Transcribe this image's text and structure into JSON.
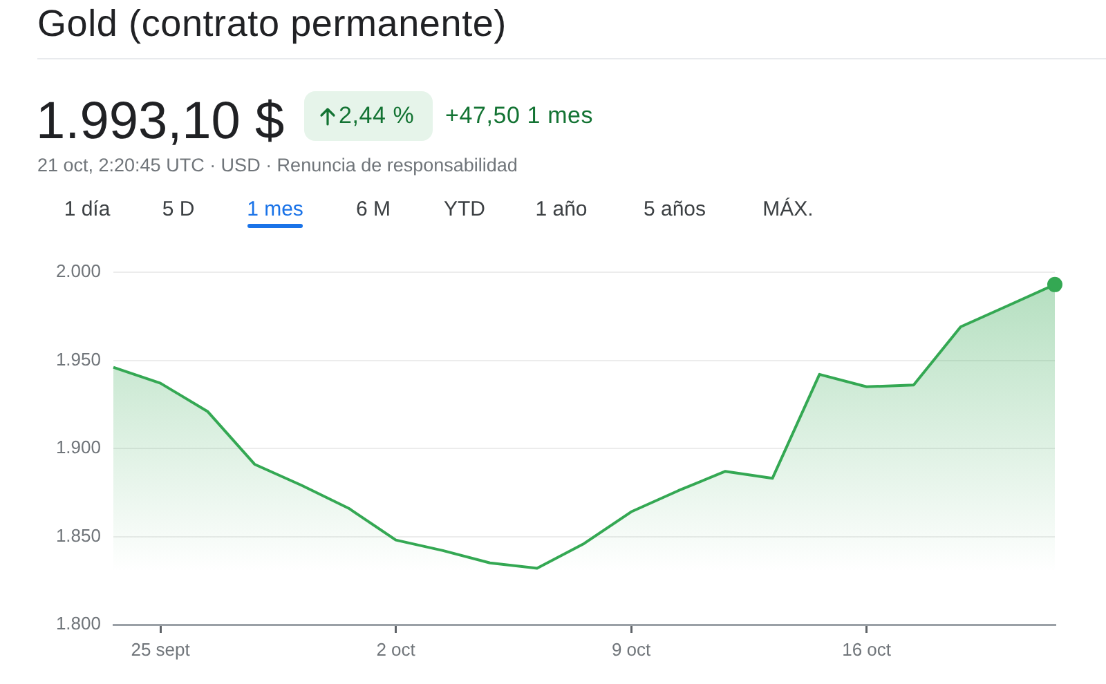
{
  "chart_data": {
    "type": "area",
    "title": "Gold (contrato permanente)",
    "subtitle": "21 oct, 2:20:45 UTC · USD · Renuncia de responsabilidad",
    "annotations": [
      "1.993,10 $",
      "2,44 %",
      "+47,50 1 mes",
      "1 día",
      "5 D",
      "1 mes",
      "6 M",
      "YTD",
      "1 año",
      "5 años",
      "MÁX."
    ],
    "categories": [
      null,
      "25 sept",
      null,
      null,
      null,
      null,
      "2 oct",
      null,
      null,
      null,
      null,
      "9 oct",
      null,
      null,
      null,
      null,
      "16 oct",
      null,
      null,
      null,
      null
    ],
    "series": [
      {
        "color": "#34a853",
        "values": [
          1946,
          1937,
          1921,
          1891,
          1879,
          1866,
          1848,
          1842,
          1835,
          1832,
          1846,
          1864,
          1876,
          1887,
          1883,
          1942,
          1935,
          1936,
          1969,
          1981,
          1993
        ]
      },
      {
        "type": "scatter",
        "color": "#34a853",
        "values": [
          null,
          null,
          null,
          null,
          null,
          null,
          null,
          null,
          null,
          null,
          null,
          null,
          null,
          null,
          null,
          null,
          null,
          null,
          null,
          null,
          1993
        ]
      }
    ],
    "ylim": [
      1800,
      2000
    ],
    "yticks": [
      {
        "value": 1800,
        "label": "1.800"
      },
      {
        "value": 1850,
        "label": "1.850"
      },
      {
        "value": 1900,
        "label": "1.900"
      },
      {
        "value": 1950,
        "label": "1.950"
      },
      {
        "value": 2000,
        "label": "2.000"
      }
    ],
    "grid": "y"
  }
}
